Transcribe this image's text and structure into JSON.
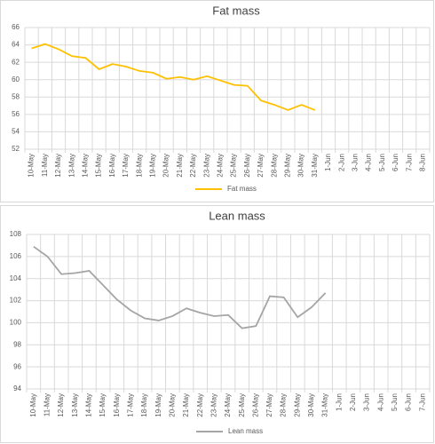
{
  "chart_data": [
    {
      "type": "line",
      "title": "Fat mass",
      "categories": [
        "10-May",
        "11-May",
        "12-May",
        "13-May",
        "14-May",
        "15-May",
        "16-May",
        "17-May",
        "18-May",
        "19-May",
        "20-May",
        "21-May",
        "22-May",
        "23-May",
        "24-May",
        "25-May",
        "26-May",
        "27-May",
        "28-May",
        "29-May",
        "30-May",
        "31-May",
        "1-Jun",
        "2-Jun",
        "3-Jun",
        "4-Jun",
        "5-Jun",
        "6-Jun",
        "7-Jun",
        "8-Jun"
      ],
      "series": [
        {
          "name": "Fat mass",
          "color": "#ffc000",
          "values": [
            63.6,
            64.1,
            63.5,
            62.7,
            62.5,
            61.2,
            61.8,
            61.5,
            61.0,
            60.8,
            60.1,
            60.3,
            60.0,
            60.4,
            59.9,
            59.4,
            59.3,
            57.6,
            57.1,
            56.5,
            57.1,
            56.5,
            null,
            null,
            null,
            null,
            null,
            null,
            null,
            null
          ]
        }
      ],
      "ylim": [
        52,
        66
      ],
      "yticks": [
        52,
        54,
        56,
        58,
        60,
        62,
        64,
        66
      ],
      "grid": true,
      "legend": "bottom"
    },
    {
      "type": "line",
      "title": "Lean mass",
      "categories": [
        "10-May",
        "11-May",
        "12-May",
        "13-May",
        "14-May",
        "15-May",
        "16-May",
        "17-May",
        "18-May",
        "19-May",
        "20-May",
        "21-May",
        "22-May",
        "23-May",
        "24-May",
        "25-May",
        "26-May",
        "27-May",
        "28-May",
        "29-May",
        "30-May",
        "31-May",
        "1-Jun",
        "2-Jun",
        "3-Jun",
        "4-Jun",
        "5-Jun",
        "6-Jun",
        "7-Jun"
      ],
      "series": [
        {
          "name": "Lean mass",
          "color": "#a5a5a5",
          "values": [
            106.9,
            106.0,
            104.4,
            104.5,
            104.7,
            103.4,
            102.1,
            101.1,
            100.4,
            100.2,
            100.6,
            101.3,
            100.9,
            100.6,
            100.7,
            99.5,
            99.7,
            102.4,
            102.3,
            100.5,
            101.4,
            102.7,
            null,
            null,
            null,
            null,
            null,
            null,
            null
          ]
        }
      ],
      "ylim": [
        94,
        108
      ],
      "yticks": [
        94,
        96,
        98,
        100,
        102,
        104,
        106,
        108
      ],
      "grid": true,
      "legend": "bottom"
    }
  ]
}
